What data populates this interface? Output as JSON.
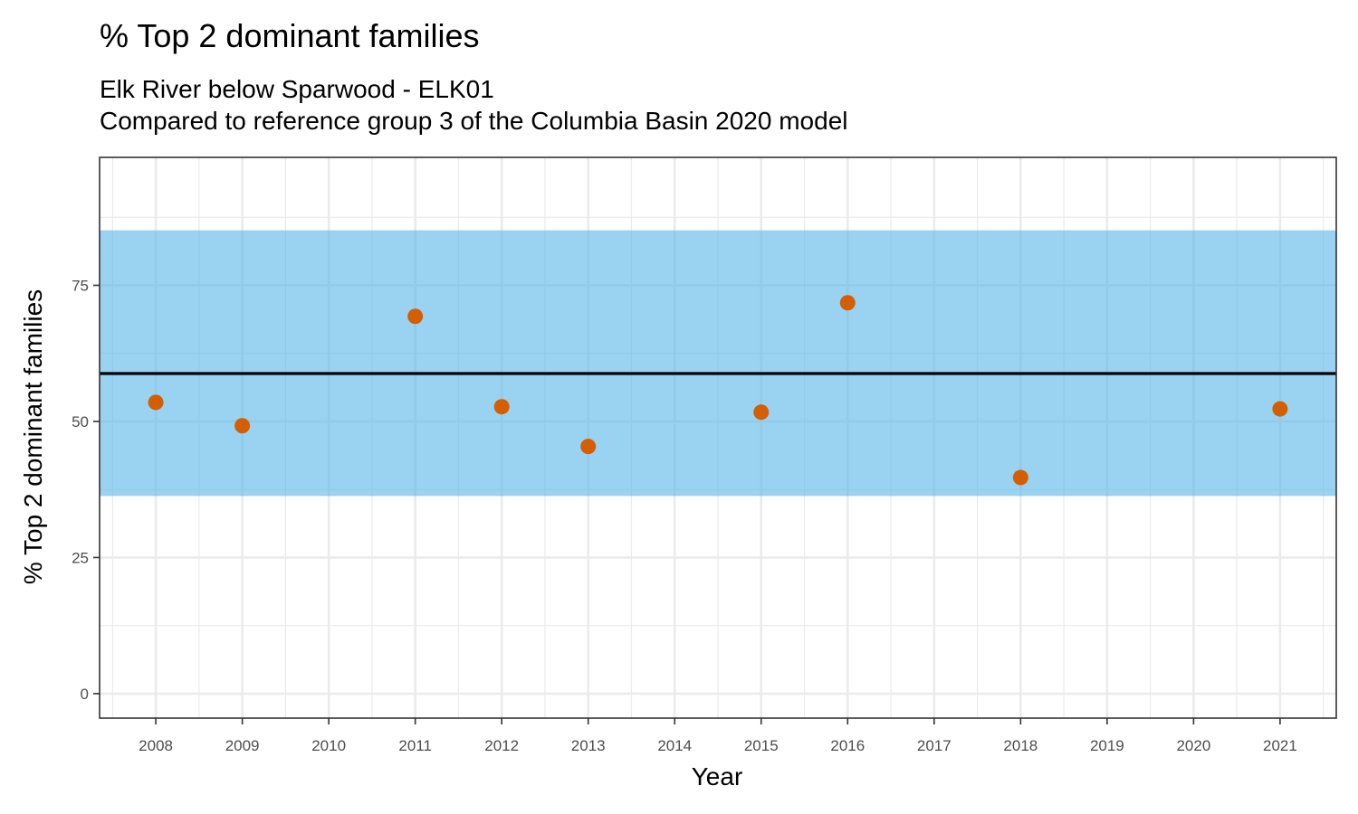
{
  "chart_data": {
    "type": "scatter",
    "title": "% Top 2 dominant families",
    "subtitle_lines": [
      "Elk River below Sparwood - ELK01",
      "Compared to reference group 3 of the Columbia Basin 2020 model"
    ],
    "xlabel": "Year",
    "ylabel": "% Top 2 dominant families",
    "x_ticks": [
      2008,
      2009,
      2010,
      2011,
      2012,
      2013,
      2014,
      2015,
      2016,
      2017,
      2018,
      2019,
      2020,
      2021
    ],
    "y_ticks": [
      0,
      25,
      50,
      75
    ],
    "xlim": [
      2007.35,
      2021.65
    ],
    "ylim": [
      -4.5,
      98.5
    ],
    "grid": true,
    "series": [
      {
        "x": [
          2008,
          2009,
          2011,
          2012,
          2013,
          2015,
          2016,
          2018,
          2021
        ],
        "y": [
          53.5,
          49.2,
          69.3,
          52.7,
          45.4,
          51.7,
          71.8,
          39.7,
          52.3
        ],
        "color": "#D55E00"
      }
    ],
    "reference_band": {
      "low": 36.3,
      "high": 85.1,
      "color": "#56B4E9"
    },
    "reference_line": {
      "y": 58.8,
      "color": "#000000"
    }
  }
}
